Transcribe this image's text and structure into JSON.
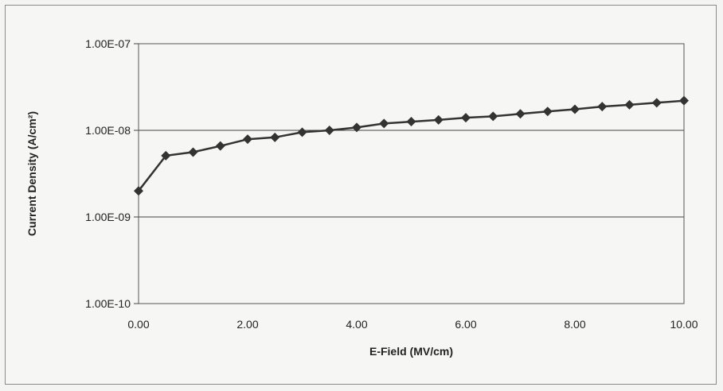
{
  "chart_data": {
    "type": "line",
    "title": "",
    "xlabel": "E-Field (MV/cm)",
    "ylabel": "Current Density (A/cm²)",
    "xlim": [
      0,
      10
    ],
    "ylim": [
      1e-10,
      1e-07
    ],
    "yscale": "log",
    "xticks": [
      "0.00",
      "2.00",
      "4.00",
      "6.00",
      "8.00",
      "10.00"
    ],
    "yticks": [
      "1.00E-10",
      "1.00E-09",
      "1.00E-08",
      "1.00E-07"
    ],
    "grid": "horizontal major",
    "legend": "none",
    "marker": "diamond",
    "color": "#333333",
    "series": [
      {
        "x": [
          0.0,
          0.5,
          1.0,
          1.5,
          2.0,
          2.5,
          3.0,
          3.5,
          4.0,
          4.5,
          5.0,
          5.5,
          6.0,
          6.5,
          7.0,
          7.5,
          8.0,
          8.5,
          9.0,
          9.5,
          10.0
        ],
        "values": [
          2e-09,
          5.1e-09,
          5.6e-09,
          6.6e-09,
          7.9e-09,
          8.3e-09,
          9.5e-09,
          1e-08,
          1.08e-08,
          1.2e-08,
          1.26e-08,
          1.32e-08,
          1.4e-08,
          1.45e-08,
          1.55e-08,
          1.65e-08,
          1.75e-08,
          1.88e-08,
          1.97e-08,
          2.08e-08,
          2.2e-08
        ]
      }
    ]
  }
}
